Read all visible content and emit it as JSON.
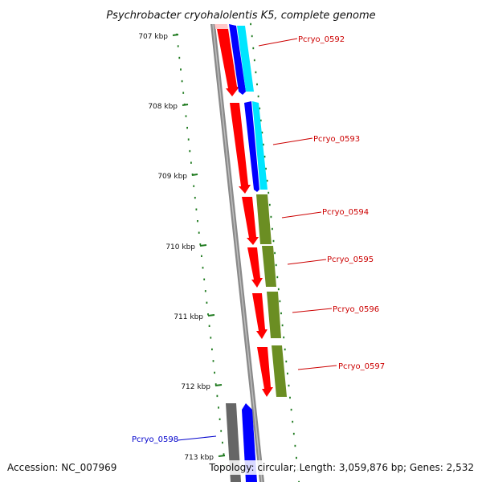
{
  "title": "Psychrobacter cryohalolentis K5, complete genome",
  "footer": {
    "accession": "Accession: NC_007969",
    "summary": "Topology: circular; Length: 3,059,876 bp; Genes: 2,532"
  },
  "scale": {
    "ticks": [
      "707 kbp",
      "708 kbp",
      "709 kbp",
      "710 kbp",
      "711 kbp",
      "712 kbp",
      "713 kbp"
    ]
  },
  "colors": {
    "backbone": "#8a8a8a",
    "scale_tick": "#1e7a1e",
    "cds": "#ff0000",
    "gene_blue": "#0000ff",
    "gene_cyan": "#00e5ff",
    "gene_olive": "#6b8e23",
    "gene_gray": "#666666",
    "label_red": "#cc0000",
    "label_blue": "#0000cc"
  },
  "genes": [
    {
      "name": "Pcryo_0592",
      "label_color": "#cc0000"
    },
    {
      "name": "Pcryo_0593",
      "label_color": "#cc0000"
    },
    {
      "name": "Pcryo_0594",
      "label_color": "#cc0000"
    },
    {
      "name": "Pcryo_0595",
      "label_color": "#cc0000"
    },
    {
      "name": "Pcryo_0596",
      "label_color": "#cc0000"
    },
    {
      "name": "Pcryo_0597",
      "label_color": "#cc0000"
    },
    {
      "name": "Pcryo_0598",
      "label_color": "#0000cc"
    }
  ]
}
